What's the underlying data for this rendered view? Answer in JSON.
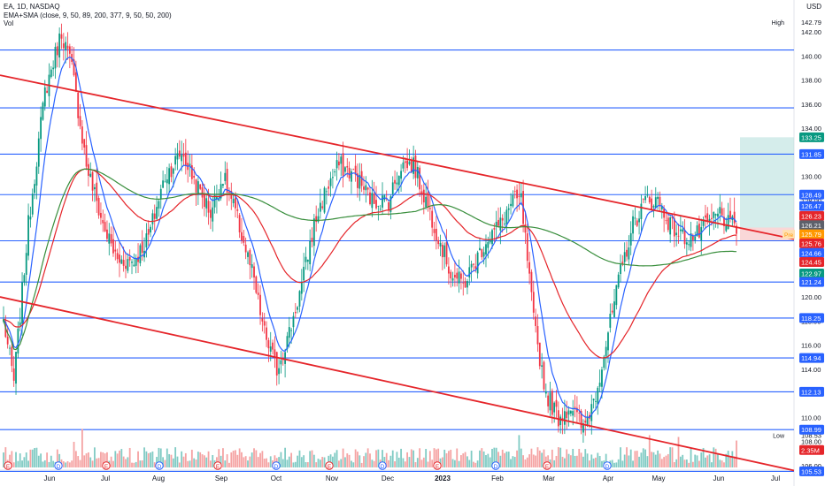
{
  "header": {
    "symbol_line": "EA, 1D, NASDAQ",
    "indicator_line": "EMA+SMA (close, 9, 50, 89, 200, 377, 9, 50, 50, 200)",
    "volume_label": "Vol",
    "currency": "USD"
  },
  "chart_data": {
    "type": "candlestick",
    "ylim": [
      105.6,
      143.4
    ],
    "x_tick_labels": [
      "Jun",
      "Jul",
      "Aug",
      "Sep",
      "Oct",
      "Nov",
      "Dec",
      "2023",
      "Feb",
      "Mar",
      "Apr",
      "May",
      "Jun",
      "Jul"
    ],
    "price_ticks": [
      "142.00",
      "140.00",
      "138.00",
      "136.00",
      "134.00",
      "132.00",
      "130.00",
      "128.00",
      "126.00",
      "124.00",
      "122.00",
      "120.00",
      "118.00",
      "116.00",
      "114.00",
      "112.00",
      "110.00",
      "108.00",
      "106.00"
    ],
    "horizontal_levels": [
      140.49,
      135.69,
      131.85,
      128.49,
      124.66,
      121.24,
      118.25,
      114.94,
      112.13,
      108.99,
      105.53
    ],
    "level_color": "#2962ff",
    "trendline_color": "#e5252a",
    "high_low": {
      "high_label": "High",
      "high_value": "142.79",
      "low_label": "Low",
      "low_value": "108.53"
    },
    "badges": [
      {
        "text": "133.25",
        "price": 133.25,
        "bg": "#089981"
      },
      {
        "text": "131.85",
        "price": 131.85,
        "bg": "#2962ff"
      },
      {
        "text": "128.49",
        "price": 128.49,
        "bg": "#2962ff"
      },
      {
        "text": "126.47",
        "price": 127.55,
        "bg": "#2962ff"
      },
      {
        "text": "126.23",
        "price": 126.72,
        "bg": "#e5252a"
      },
      {
        "text": "126.21",
        "price": 125.95,
        "bg": "#5d606b"
      },
      {
        "text": "125.79",
        "price": 125.2,
        "bg": "#ff9800"
      },
      {
        "text": "125.76",
        "price": 124.45,
        "bg": "#e5252a"
      },
      {
        "text": "124.66",
        "price": 123.65,
        "bg": "#2962ff"
      },
      {
        "text": "124.45",
        "price": 122.9,
        "bg": "#e5252a"
      },
      {
        "text": "122.97",
        "price": 121.95,
        "bg": "#089981"
      },
      {
        "text": "121.24",
        "price": 121.24,
        "bg": "#2962ff"
      },
      {
        "text": "118.25",
        "price": 118.25,
        "bg": "#2962ff"
      },
      {
        "text": "114.94",
        "price": 114.94,
        "bg": "#2962ff"
      },
      {
        "text": "112.13",
        "price": 112.13,
        "bg": "#2962ff"
      },
      {
        "text": "108.99",
        "price": 108.99,
        "bg": "#2962ff"
      },
      {
        "text": "2.35M",
        "price": 107.3,
        "bg": "#e5252a"
      },
      {
        "text": "105.53",
        "price": 105.53,
        "bg": "#2962ff"
      }
    ],
    "pre_label": "Pre",
    "position_box": {
      "entry": 125.76,
      "target": 133.25,
      "stop": 124.66
    },
    "series": [
      {
        "name": "EMA 9",
        "color": "#2962ff"
      },
      {
        "name": "EMA 50",
        "color": "#e5252a"
      },
      {
        "name": "SMA 200",
        "color": "#388e3c"
      }
    ],
    "event_markers": [
      "E",
      "D",
      "E",
      "D",
      "E",
      "D",
      "E",
      "D",
      "E",
      "D",
      "E",
      "D"
    ]
  }
}
